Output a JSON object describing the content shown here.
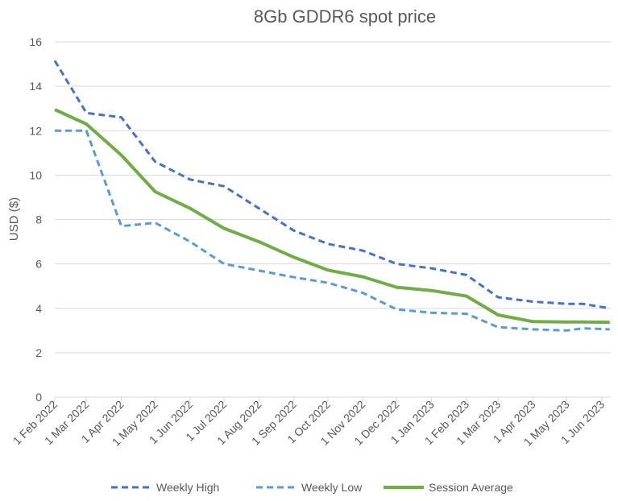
{
  "chart_data": {
    "type": "line",
    "title": "8Gb GDDR6 spot price",
    "xlabel": "",
    "ylabel": "USD ($)",
    "ylim": [
      0,
      16
    ],
    "yticks": [
      0,
      2,
      4,
      6,
      8,
      10,
      12,
      14,
      16
    ],
    "grid": true,
    "legend": "bottom",
    "x_tick_labels": [
      "1 Feb 2022",
      "1 Mar 2022",
      "1 Apr 2022",
      "1 May 2022",
      "1 Jun 2022",
      "1 Jul 2022",
      "1 Aug 2022",
      "1 Sep 2022",
      "1 Oct 2022",
      "1 Nov 2022",
      "1 Dec 2022",
      "1 Jan 2023",
      "1 Feb 2023",
      "1 Mar 2023",
      "1 Apr 2023",
      "1 May 2023",
      "1 Jun 2023"
    ],
    "x_tick_dates": [
      "2022-02-01",
      "2022-03-01",
      "2022-04-01",
      "2022-05-01",
      "2022-06-01",
      "2022-07-01",
      "2022-08-01",
      "2022-09-01",
      "2022-10-01",
      "2022-11-01",
      "2022-12-01",
      "2023-01-01",
      "2023-02-01",
      "2023-03-01",
      "2023-04-01",
      "2023-05-01",
      "2023-06-01"
    ],
    "x": [
      "2022-02-01",
      "2022-03-01",
      "2022-04-01",
      "2022-05-01",
      "2022-06-01",
      "2022-07-01",
      "2022-08-01",
      "2022-09-01",
      "2022-10-01",
      "2022-11-01",
      "2022-12-01",
      "2023-01-01",
      "2023-02-01",
      "2023-03-01",
      "2023-04-01",
      "2023-05-01",
      "2023-05-15",
      "2023-06-08"
    ],
    "series": [
      {
        "name": "Weekly High",
        "color": "#4472C4",
        "style": "dashed",
        "values": [
          15.15,
          12.8,
          12.6,
          10.6,
          9.8,
          9.5,
          8.5,
          7.5,
          6.9,
          6.6,
          6.0,
          5.8,
          5.5,
          4.5,
          4.3,
          4.2,
          4.2,
          4.0
        ]
      },
      {
        "name": "Weekly Low",
        "color": "#5B9BD5",
        "style": "dashed",
        "values": [
          12.0,
          12.0,
          7.7,
          7.85,
          7.0,
          6.0,
          5.7,
          5.4,
          5.15,
          4.7,
          3.95,
          3.8,
          3.75,
          3.15,
          3.05,
          3.0,
          3.1,
          3.05
        ]
      },
      {
        "name": "Session Average",
        "color": "#70AD47",
        "style": "solid",
        "values": [
          12.95,
          12.3,
          10.9,
          9.25,
          8.5,
          7.6,
          7.0,
          6.3,
          5.72,
          5.42,
          4.95,
          4.8,
          4.55,
          3.7,
          3.4,
          3.38,
          3.38,
          3.37
        ]
      }
    ]
  }
}
